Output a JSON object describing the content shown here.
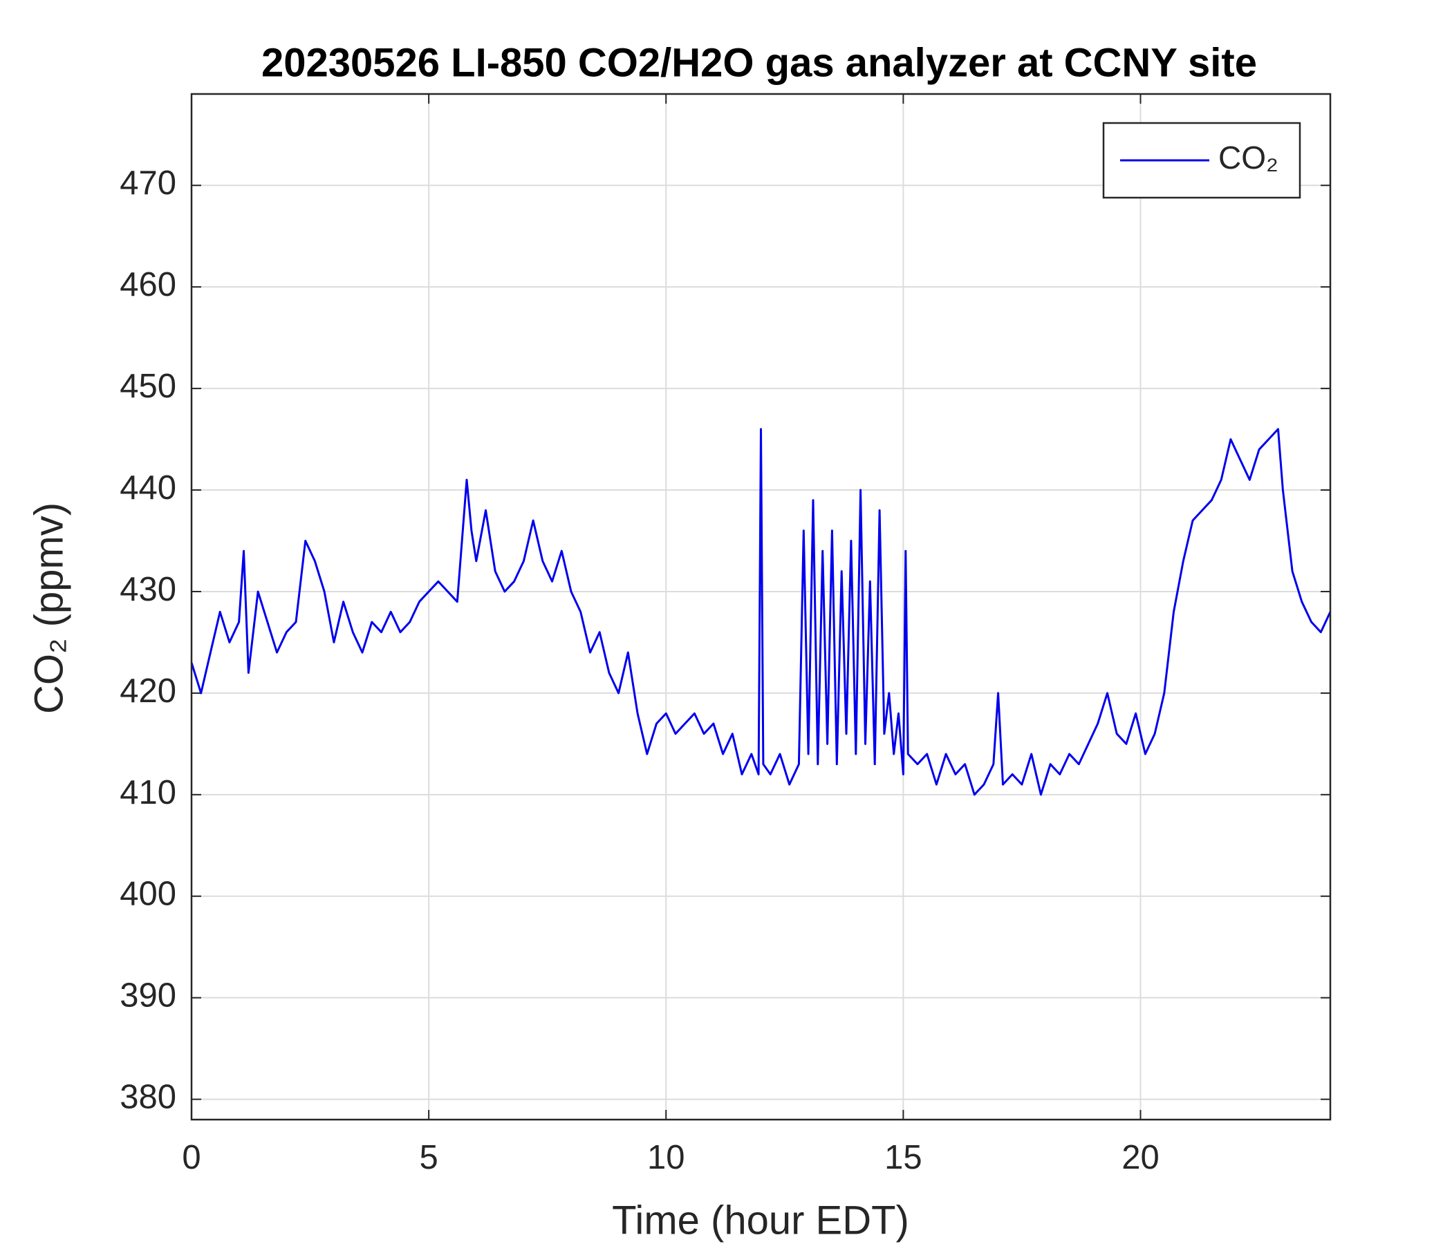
{
  "chart_data": {
    "type": "line",
    "title": "20230526 LI-850 CO2/H2O gas analyzer at CCNY site",
    "xlabel": "Time (hour EDT)",
    "ylabel": "CO₂ (ppmv)",
    "xlim": [
      0,
      24
    ],
    "ylim": [
      378,
      479
    ],
    "xticks": [
      0,
      5,
      10,
      15,
      20
    ],
    "yticks": [
      380,
      390,
      400,
      410,
      420,
      430,
      440,
      450,
      460,
      470
    ],
    "grid": true,
    "legend": "upper right",
    "x": [
      0,
      0.2,
      0.4,
      0.6,
      0.8,
      1.0,
      1.1,
      1.2,
      1.4,
      1.6,
      1.8,
      2.0,
      2.2,
      2.4,
      2.6,
      2.8,
      3.0,
      3.2,
      3.4,
      3.6,
      3.8,
      4.0,
      4.2,
      4.4,
      4.6,
      4.8,
      5.0,
      5.2,
      5.4,
      5.6,
      5.8,
      5.9,
      6.0,
      6.2,
      6.4,
      6.6,
      6.8,
      7.0,
      7.2,
      7.4,
      7.6,
      7.8,
      8.0,
      8.2,
      8.4,
      8.6,
      8.8,
      9.0,
      9.2,
      9.4,
      9.6,
      9.8,
      10.0,
      10.2,
      10.4,
      10.6,
      10.8,
      11.0,
      11.2,
      11.4,
      11.6,
      11.8,
      11.95,
      12.0,
      12.05,
      12.2,
      12.4,
      12.6,
      12.8,
      12.9,
      13.0,
      13.1,
      13.2,
      13.3,
      13.4,
      13.5,
      13.6,
      13.7,
      13.8,
      13.9,
      14.0,
      14.1,
      14.2,
      14.3,
      14.4,
      14.5,
      14.6,
      14.7,
      14.8,
      14.9,
      15.0,
      15.05,
      15.1,
      15.3,
      15.5,
      15.7,
      15.9,
      16.1,
      16.3,
      16.5,
      16.7,
      16.9,
      17.0,
      17.1,
      17.3,
      17.5,
      17.7,
      17.9,
      18.1,
      18.3,
      18.5,
      18.7,
      18.9,
      19.1,
      19.3,
      19.5,
      19.7,
      19.9,
      20.1,
      20.3,
      20.5,
      20.7,
      20.9,
      21.1,
      21.3,
      21.5,
      21.7,
      21.9,
      22.1,
      22.3,
      22.5,
      22.7,
      22.9,
      23.0,
      23.2,
      23.4,
      23.6,
      23.8,
      24.0
    ],
    "series": [
      {
        "name": "CO₂",
        "color": "#0000ee",
        "values": [
          423,
          420,
          424,
          428,
          425,
          427,
          434,
          422,
          430,
          427,
          424,
          426,
          427,
          435,
          433,
          430,
          425,
          429,
          426,
          424,
          427,
          426,
          428,
          426,
          427,
          429,
          430,
          431,
          430,
          429,
          441,
          436,
          433,
          438,
          432,
          430,
          431,
          433,
          437,
          433,
          431,
          434,
          430,
          428,
          424,
          426,
          422,
          420,
          424,
          418,
          414,
          417,
          418,
          416,
          417,
          418,
          416,
          417,
          414,
          416,
          412,
          414,
          412,
          446,
          413,
          412,
          414,
          411,
          413,
          436,
          414,
          439,
          413,
          434,
          415,
          436,
          413,
          432,
          416,
          435,
          414,
          440,
          415,
          431,
          413,
          438,
          416,
          420,
          414,
          418,
          412,
          434,
          414,
          413,
          414,
          411,
          414,
          412,
          413,
          410,
          411,
          413,
          420,
          411,
          412,
          411,
          414,
          410,
          413,
          412,
          414,
          413,
          415,
          417,
          420,
          416,
          415,
          418,
          414,
          416,
          420,
          428,
          433,
          437,
          438,
          439,
          441,
          445,
          443,
          441,
          444,
          445,
          446,
          440,
          432,
          429,
          427,
          426,
          428
        ]
      }
    ]
  }
}
